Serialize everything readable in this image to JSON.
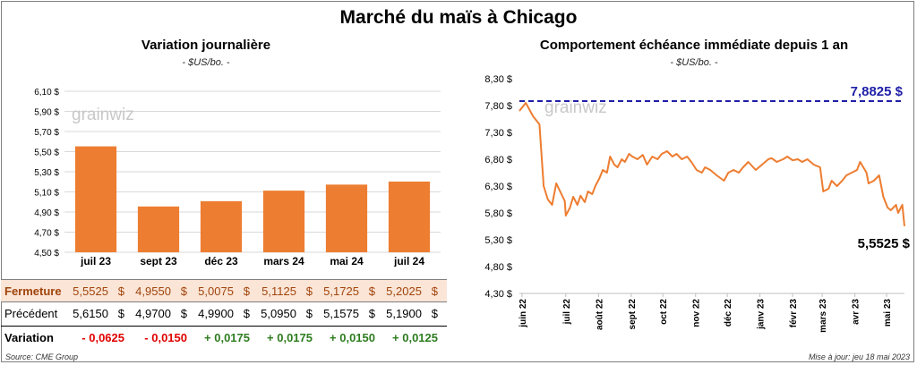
{
  "title": "Marché du maïs à Chicago",
  "left_chart": {
    "title": "Variation journalière",
    "unit": "- $US/bo. -"
  },
  "right_chart": {
    "title": "Comportement échéance immédiate depuis 1 an",
    "unit": "- $US/bo. -",
    "max_label": "7,8825 $",
    "last_label": "5,5525 $"
  },
  "watermark": "grainwiz",
  "table": {
    "rows": [
      {
        "label": "Fermeture",
        "values": [
          "5,5525",
          "4,9550",
          "5,0075",
          "5,1125",
          "5,1725",
          "5,2025"
        ]
      },
      {
        "label": "Précédent",
        "values": [
          "5,6150",
          "4,9700",
          "4,9900",
          "5,0950",
          "5,1575",
          "5,1900"
        ]
      },
      {
        "label": "Variation",
        "values": [
          "- 0,0625",
          "- 0,0150",
          "+ 0,0175",
          "+ 0,0175",
          "+ 0,0150",
          "+ 0,0125"
        ]
      }
    ],
    "currency_symbol": "$"
  },
  "colors": {
    "bar": "#ed7d31",
    "line": "#ed7d31",
    "max_line": "#1f1fa8",
    "max_label": "#1f1fa8",
    "fermeture_bg": "#fbe5d6",
    "negative": "#e00000",
    "positive": "#2e7d1f"
  },
  "footer": {
    "source": "Source: CME Group",
    "updated": "Mise à jour: jeu 18 mai 2023"
  },
  "chart_data": [
    {
      "type": "bar",
      "categories": [
        "juil 23",
        "sept 23",
        "déc 23",
        "mars 24",
        "mai 24",
        "juil 24"
      ],
      "values": [
        5.5525,
        4.955,
        5.0075,
        5.1125,
        5.1725,
        5.2025
      ],
      "ylim": [
        4.5,
        6.1
      ],
      "yticks": [
        "4,50 $",
        "4,70 $",
        "4,90 $",
        "5,10 $",
        "5,30 $",
        "5,50 $",
        "5,70 $",
        "5,90 $",
        "6,10 $"
      ],
      "grid": true
    },
    {
      "type": "line",
      "x": [
        "2022-05-18",
        "2022-05-24",
        "2022-05-31",
        "2022-06-06",
        "2022-06-10",
        "2022-06-14",
        "2022-06-18",
        "2022-06-22",
        "2022-06-30",
        "2022-07-01",
        "2022-07-05",
        "2022-07-08",
        "2022-07-12",
        "2022-07-15",
        "2022-07-19",
        "2022-07-22",
        "2022-07-26",
        "2022-07-29",
        "2022-08-02",
        "2022-08-05",
        "2022-08-09",
        "2022-08-12",
        "2022-08-16",
        "2022-08-19",
        "2022-08-23",
        "2022-08-26",
        "2022-08-30",
        "2022-09-02",
        "2022-09-07",
        "2022-09-12",
        "2022-09-16",
        "2022-09-21",
        "2022-09-26",
        "2022-09-30",
        "2022-10-05",
        "2022-10-10",
        "2022-10-14",
        "2022-10-19",
        "2022-10-24",
        "2022-10-28",
        "2022-11-02",
        "2022-11-07",
        "2022-11-10",
        "2022-11-15",
        "2022-11-21",
        "2022-11-28",
        "2022-12-02",
        "2022-12-07",
        "2022-12-12",
        "2022-12-16",
        "2022-12-21",
        "2022-12-28",
        "2023-01-03",
        "2023-01-09",
        "2023-01-12",
        "2023-01-17",
        "2023-01-23",
        "2023-01-27",
        "2023-02-01",
        "2023-02-06",
        "2023-02-10",
        "2023-02-15",
        "2023-02-21",
        "2023-02-27",
        "2023-03-02",
        "2023-03-07",
        "2023-03-10",
        "2023-03-15",
        "2023-03-20",
        "2023-03-24",
        "2023-03-29",
        "2023-04-03",
        "2023-04-06",
        "2023-04-12",
        "2023-04-14",
        "2023-04-19",
        "2023-04-24",
        "2023-04-28",
        "2023-05-02",
        "2023-05-05",
        "2023-05-10",
        "2023-05-12",
        "2023-05-16",
        "2023-05-18"
      ],
      "y": [
        7.7,
        7.85,
        7.6,
        7.45,
        6.3,
        6.05,
        5.95,
        6.35,
        6.02,
        5.75,
        5.9,
        6.1,
        5.95,
        6.12,
        6.0,
        6.2,
        6.15,
        6.3,
        6.45,
        6.6,
        6.55,
        6.85,
        6.7,
        6.65,
        6.8,
        6.75,
        6.9,
        6.85,
        6.8,
        6.88,
        6.7,
        6.85,
        6.8,
        6.9,
        6.95,
        6.85,
        6.9,
        6.8,
        6.85,
        6.75,
        6.6,
        6.55,
        6.65,
        6.6,
        6.5,
        6.4,
        6.55,
        6.6,
        6.55,
        6.65,
        6.75,
        6.6,
        6.7,
        6.8,
        6.82,
        6.75,
        6.8,
        6.85,
        6.78,
        6.8,
        6.75,
        6.8,
        6.7,
        6.65,
        6.2,
        6.25,
        6.4,
        6.3,
        6.4,
        6.5,
        6.55,
        6.6,
        6.75,
        6.55,
        6.35,
        6.4,
        6.5,
        6.1,
        5.9,
        5.85,
        5.95,
        5.8,
        5.95,
        5.5525
      ],
      "ylim": [
        4.3,
        8.3
      ],
      "yticks": [
        "4,30 $",
        "4,80 $",
        "5,30 $",
        "5,80 $",
        "6,30 $",
        "6,80 $",
        "7,30 $",
        "7,80 $",
        "8,30 $"
      ],
      "xticks": [
        "juin 22",
        "juil 22",
        "août 22",
        "sept 22",
        "oct 22",
        "nov 22",
        "déc 22",
        "janv 23",
        "févr 23",
        "mars 23",
        "avr 23",
        "mai 23"
      ],
      "max_value": 7.8825,
      "grid": false
    }
  ]
}
